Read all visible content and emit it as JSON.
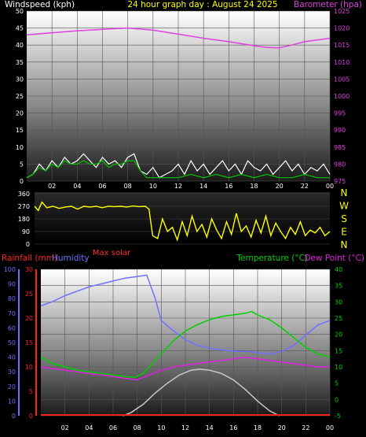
{
  "colors": {
    "background": "#000000",
    "wind_label": "#ffffff",
    "title": "#ffff00",
    "barometer": "#e040e0",
    "wind_speed": "#ffffff",
    "wind_gust": "#00c000",
    "wind_dir": "#ffff00",
    "rain": "#ff2020",
    "humidity": "#7070ff",
    "temperature": "#00d000",
    "dewpoint": "#e020e0",
    "solar": "#c8c8c8",
    "maxsolar_label": "#ff3030"
  },
  "chart_data": [
    {
      "type": "line",
      "title": "24 hour graph day : August 24 2025",
      "left_axis_label": "Windspeed (kph)",
      "right_axis_label": "Barometer (hpa)",
      "x_ticks": [
        "02",
        "04",
        "06",
        "08",
        "10",
        "12",
        "14",
        "16",
        "18",
        "20",
        "22",
        "00"
      ],
      "left_ticks": [
        "0",
        "5",
        "10",
        "15",
        "20",
        "25",
        "30",
        "35",
        "40",
        "45",
        "50"
      ],
      "right_ticks": [
        "975",
        "980",
        "985",
        "990",
        "995",
        "1000",
        "1005",
        "1010",
        "1015",
        "1020",
        "1025"
      ],
      "xlim": [
        0,
        24
      ],
      "ylim_left": [
        0,
        50
      ],
      "ylim_right": [
        975,
        1025
      ],
      "grid": true,
      "series": [
        {
          "key": "barometer",
          "x": [
            0,
            2,
            4,
            6,
            8,
            10,
            12,
            14,
            16,
            18,
            19,
            20,
            21,
            22,
            24
          ],
          "values": [
            1018,
            1018.6,
            1019.2,
            1019.6,
            1020,
            1019.4,
            1018.2,
            1017,
            1016,
            1014.8,
            1014.3,
            1014.2,
            1015,
            1016,
            1017
          ]
        },
        {
          "key": "wind_speed",
          "x": [
            0,
            0.5,
            1,
            1.5,
            2,
            2.5,
            3,
            3.5,
            4,
            4.5,
            5,
            5.5,
            6,
            6.5,
            7,
            7.5,
            8,
            8.5,
            9,
            9.5,
            10,
            10.5,
            11,
            11.5,
            12,
            12.5,
            13,
            13.5,
            14,
            14.5,
            15,
            15.5,
            16,
            16.5,
            17,
            17.5,
            18,
            18.5,
            19,
            19.5,
            20,
            20.5,
            21,
            21.5,
            22,
            22.5,
            23,
            23.5,
            24
          ],
          "values": [
            1,
            2,
            5,
            3,
            6,
            4,
            7,
            5,
            6,
            8,
            6,
            4,
            7,
            5,
            6,
            4,
            7,
            8,
            3,
            2,
            4,
            1,
            2,
            3,
            5,
            2,
            6,
            3,
            5,
            2,
            4,
            6,
            3,
            5,
            2,
            6,
            4,
            3,
            5,
            2,
            4,
            6,
            3,
            5,
            2,
            4,
            3,
            5,
            2
          ]
        },
        {
          "key": "wind_gust",
          "x": [
            0,
            0.5,
            1,
            1.5,
            2,
            2.5,
            3,
            3.5,
            4,
            4.5,
            5,
            5.5,
            6,
            6.5,
            7,
            7.5,
            8,
            8.5,
            9,
            9.5,
            10,
            11,
            12,
            13,
            14,
            15,
            16,
            17,
            18,
            19,
            20,
            21,
            22,
            23,
            24
          ],
          "values": [
            1,
            2,
            4,
            3,
            5,
            4,
            6,
            5,
            5,
            6,
            5,
            5,
            6,
            4,
            5,
            5,
            6,
            6,
            3,
            1,
            1,
            1,
            1,
            2,
            1,
            2,
            1,
            2,
            1,
            2,
            1,
            1,
            2,
            1,
            1
          ]
        }
      ]
    },
    {
      "type": "scatter",
      "right_axis_labels": [
        "N",
        "W",
        "S",
        "E",
        "N"
      ],
      "left_ticks": [
        "0",
        "90",
        "180",
        "270",
        "360"
      ],
      "xlim": [
        0,
        24
      ],
      "ylim": [
        0,
        360
      ],
      "series": [
        {
          "key": "wind_dir",
          "x": [
            0,
            0.3,
            0.6,
            1,
            1.5,
            2,
            2.5,
            3,
            3.5,
            4,
            4.5,
            5,
            5.5,
            6,
            6.5,
            7,
            7.5,
            8,
            8.5,
            9,
            9.3,
            9.6,
            10,
            10.4,
            10.8,
            11.2,
            11.6,
            12,
            12.4,
            12.8,
            13.2,
            13.6,
            14,
            14.4,
            14.8,
            15.2,
            15.6,
            16,
            16.4,
            16.8,
            17.2,
            17.6,
            18,
            18.4,
            18.8,
            19.2,
            19.6,
            20,
            20.4,
            20.8,
            21.2,
            21.6,
            22,
            22.4,
            22.8,
            23.2,
            23.6,
            24
          ],
          "values": [
            270,
            240,
            300,
            260,
            270,
            255,
            265,
            270,
            250,
            270,
            265,
            270,
            260,
            270,
            268,
            270,
            265,
            272,
            268,
            270,
            250,
            60,
            40,
            180,
            90,
            120,
            30,
            160,
            60,
            200,
            90,
            140,
            50,
            180,
            100,
            40,
            160,
            70,
            220,
            90,
            130,
            50,
            170,
            80,
            200,
            60,
            150,
            90,
            40,
            120,
            70,
            160,
            60,
            100,
            80,
            120,
            60,
            90
          ]
        }
      ]
    },
    {
      "type": "line",
      "header_labels": {
        "max_solar": "Max solar"
      },
      "legend": {
        "rainfall": "Rainfall (mm)",
        "humidity": "Humidity",
        "temperature": "Temperature (°C)",
        "dewpoint": "Dew Point (°C)"
      },
      "x_ticks": [
        "02",
        "04",
        "06",
        "08",
        "10",
        "12",
        "14",
        "16",
        "18",
        "20",
        "22",
        "00"
      ],
      "rain_ticks": [
        "0",
        "5",
        "10",
        "15",
        "20",
        "25",
        "30"
      ],
      "humidity_ticks": [
        "0",
        "10",
        "20",
        "30",
        "40",
        "50",
        "60",
        "70",
        "80",
        "90",
        "100"
      ],
      "temp_ticks": [
        "-5",
        "0",
        "5",
        "10",
        "15",
        "20",
        "25",
        "30",
        "35",
        "40"
      ],
      "xlim": [
        0,
        24
      ],
      "ylim_temp": [
        -5,
        40
      ],
      "ylim_humidity": [
        0,
        100
      ],
      "ylim_rain": [
        0,
        30
      ],
      "grid": true,
      "series": [
        {
          "key": "humidity",
          "x": [
            0,
            1,
            2,
            3,
            4,
            5,
            6,
            7,
            8,
            8.8,
            9.5,
            10,
            11,
            12,
            13,
            14,
            15,
            16,
            17,
            18,
            19,
            20,
            21,
            22,
            23,
            24
          ],
          "values": [
            75,
            78,
            82,
            85,
            88,
            90,
            92,
            94,
            95,
            96,
            80,
            65,
            58,
            52,
            48,
            46,
            45,
            44,
            44,
            43,
            42,
            44,
            48,
            55,
            62,
            65
          ]
        },
        {
          "key": "temperature",
          "x": [
            0,
            1,
            2,
            3,
            4,
            5,
            6,
            7,
            7.8,
            8.5,
            9,
            10,
            11,
            12,
            13,
            14,
            15,
            16,
            17,
            17.5,
            18,
            19,
            20,
            21,
            22,
            23,
            24
          ],
          "values": [
            13,
            11,
            10,
            9,
            8.5,
            8,
            7.5,
            7,
            6.8,
            8,
            10,
            14,
            18,
            21,
            23,
            24.5,
            25.5,
            26,
            26.5,
            27,
            26,
            24.5,
            22,
            19,
            16,
            14,
            13
          ]
        },
        {
          "key": "dewpoint",
          "x": [
            0,
            1,
            2,
            3,
            4,
            5,
            6,
            7,
            8,
            9,
            10,
            11,
            12,
            13,
            14,
            15,
            16,
            17,
            18,
            19,
            20,
            21,
            22,
            23,
            24
          ],
          "values": [
            10,
            9.5,
            9,
            8.5,
            8,
            7.5,
            7,
            6.5,
            6,
            7.5,
            9,
            10,
            10.5,
            11,
            11.5,
            12,
            12.5,
            13,
            12.5,
            12,
            11.5,
            11,
            10.5,
            10,
            10
          ]
        },
        {
          "key": "solar",
          "x": [
            6.8,
            7.5,
            8.5,
            9.5,
            10.5,
            11.5,
            12.5,
            13.2,
            14,
            15,
            16,
            17,
            18,
            19,
            19.8
          ],
          "values": [
            -5,
            -4,
            -1.5,
            2,
            5,
            7.5,
            9,
            9.3,
            9,
            8,
            6,
            3,
            -0.5,
            -3.5,
            -5
          ]
        }
      ]
    }
  ]
}
